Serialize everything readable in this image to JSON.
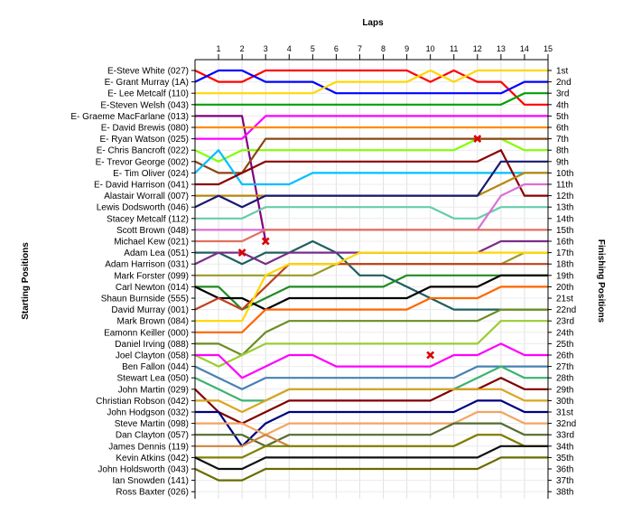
{
  "chart_data": {
    "type": "line",
    "title": "",
    "xlabel": "Laps",
    "ylabel_left": "Starting Positions",
    "ylabel_right": "Finishing Positions",
    "x_ticks": [
      "1",
      "2",
      "3",
      "4",
      "5",
      "6",
      "7",
      "8",
      "9",
      "10",
      "11",
      "12",
      "13",
      "14",
      "15"
    ],
    "starting_labels": [
      "E-Steve White (027)",
      "E- Grant Murray (1A)",
      "E- Lee Metcalf (110)",
      "E-Steven Welsh (043)",
      "E- Graeme MacFarlane (013)",
      "E- David Brewis (080)",
      "E- Ryan Watson (025)",
      "E- Chris Bancroft (022)",
      "E- Trevor George (002)",
      "E- Tim Oliver (024)",
      "E- David Harrison (041)",
      "Alastair Worrall (007)",
      "Lewis Dodsworth (046)",
      "Stacey Metcalf (112)",
      "Scott Brown (048)",
      "Michael Kew (021)",
      "Adam Lea (051)",
      "Adam Harrison (031)",
      "Mark Forster (099)",
      "Carl Newton (014)",
      "Shaun Burnside (555)",
      "David Murray (001)",
      "Mark Brown (084)",
      "Eamonn Keiller (000)",
      "Daniel Irving (088)",
      "Joel Clayton (058)",
      "Ben Fallon (044)",
      "Stewart Lea (050)",
      "John Martin (029)",
      "Christian Robson (042)",
      "John Hodgson (032)",
      "Steve Martin (098)",
      "Dan Clayton (057)",
      "James Dennis (119)",
      "Kevin Atkins (042)",
      "John Holdsworth (043)",
      "Ian Snowden (141)",
      "Ross Baxter (026)"
    ],
    "finishing_labels": [
      "1st",
      "2nd",
      "3rd",
      "4th",
      "5th",
      "6th",
      "7th",
      "8th",
      "9th",
      "10th",
      "11th",
      "12th",
      "13th",
      "14th",
      "15th",
      "16th",
      "17th",
      "18th",
      "19th",
      "20th",
      "21st",
      "22nd",
      "23rd",
      "24th",
      "25th",
      "26th",
      "27th",
      "28th",
      "29th",
      "30th",
      "31st",
      "32nd",
      "33rd",
      "34th",
      "35th",
      "36th",
      "37th",
      "38th"
    ],
    "series": [
      {
        "color": "#ff0000",
        "start": 1,
        "positions": [
          2,
          2,
          1,
          1,
          1,
          1,
          1,
          1,
          1,
          2,
          1,
          2,
          2,
          4,
          4
        ]
      },
      {
        "color": "#0000ff",
        "start": 2,
        "positions": [
          1,
          1,
          2,
          2,
          2,
          3,
          3,
          3,
          3,
          3,
          3,
          3,
          3,
          2,
          2
        ]
      },
      {
        "color": "#ffd700",
        "start": 3,
        "positions": [
          3,
          3,
          3,
          3,
          3,
          2,
          2,
          2,
          2,
          1,
          2,
          1,
          1,
          1,
          1
        ]
      },
      {
        "color": "#00a000",
        "start": 4,
        "positions": [
          4,
          4,
          4,
          4,
          4,
          4,
          4,
          4,
          4,
          4,
          4,
          4,
          4,
          3,
          3
        ]
      },
      {
        "color": "#800080",
        "start": 5,
        "positions": [
          5,
          5,
          16,
          null,
          null,
          null,
          null,
          null,
          null,
          null,
          null,
          null,
          null,
          null,
          null
        ],
        "retired_at": 3
      },
      {
        "color": "#ff00ff",
        "start": 7,
        "positions": [
          7,
          7,
          5,
          5,
          5,
          5,
          5,
          5,
          5,
          5,
          5,
          5,
          5,
          5,
          5
        ]
      },
      {
        "color": "#ff8c00",
        "start": 6,
        "positions": [
          6,
          6,
          6,
          6,
          6,
          6,
          6,
          6,
          6,
          6,
          6,
          6,
          6,
          6,
          6
        ]
      },
      {
        "color": "#80ff00",
        "start": 8,
        "positions": [
          9,
          8,
          8,
          8,
          8,
          8,
          8,
          8,
          8,
          8,
          8,
          7,
          7,
          8,
          8
        ]
      },
      {
        "color": "#8b4513",
        "start": 9,
        "positions": [
          10,
          10,
          7,
          7,
          7,
          7,
          7,
          7,
          7,
          7,
          7,
          7,
          7,
          7,
          7
        ]
      },
      {
        "color": "#00bfff",
        "start": 10,
        "positions": [
          8,
          11,
          11,
          11,
          10,
          10,
          10,
          10,
          10,
          10,
          10,
          10,
          10,
          10,
          10
        ]
      },
      {
        "color": "#8b0000",
        "start": 11,
        "positions": [
          11,
          10,
          9,
          9,
          9,
          9,
          9,
          9,
          9,
          9,
          9,
          9,
          8,
          12,
          12
        ]
      },
      {
        "color": "#b8860b",
        "start": 12,
        "positions": [
          12,
          12,
          12,
          12,
          12,
          12,
          12,
          12,
          12,
          12,
          12,
          12,
          11,
          10,
          10
        ]
      },
      {
        "color": "#191970",
        "start": 13,
        "positions": [
          12,
          13,
          12,
          12,
          12,
          12,
          12,
          12,
          12,
          12,
          12,
          12,
          9,
          9,
          9
        ]
      },
      {
        "color": "#66cdaa",
        "start": 14,
        "positions": [
          14,
          14,
          13,
          13,
          13,
          13,
          13,
          13,
          13,
          13,
          14,
          14,
          13,
          13,
          13
        ]
      },
      {
        "color": "#da70d6",
        "start": 15,
        "positions": [
          15,
          15,
          15,
          15,
          15,
          15,
          15,
          15,
          15,
          15,
          15,
          15,
          12,
          11,
          11
        ]
      },
      {
        "color": "#e07060",
        "start": 16,
        "positions": [
          16,
          16,
          15,
          15,
          15,
          15,
          15,
          15,
          15,
          15,
          15,
          15,
          15,
          15,
          15
        ]
      },
      {
        "color": "#1f5f5f",
        "start": 17,
        "positions": [
          17,
          18,
          17,
          17,
          16,
          17,
          19,
          19,
          20,
          21,
          22,
          22,
          22,
          22,
          22
        ]
      },
      {
        "color": "#7b2d8b",
        "start": 18,
        "positions": [
          17,
          17,
          18,
          17,
          17,
          17,
          17,
          17,
          17,
          17,
          17,
          17,
          16,
          16,
          16
        ]
      },
      {
        "color": "#9a9a2a",
        "start": 19,
        "positions": [
          19,
          19,
          19,
          19,
          19,
          18,
          18,
          18,
          18,
          18,
          18,
          18,
          18,
          17,
          17
        ]
      },
      {
        "color": "#228b22",
        "start": 20,
        "positions": [
          20,
          22,
          21,
          20,
          20,
          20,
          20,
          20,
          19,
          19,
          19,
          19,
          19,
          19,
          19
        ]
      },
      {
        "color": "#000000",
        "start": 20,
        "positions": [
          21,
          21,
          22,
          21,
          21,
          21,
          21,
          21,
          21,
          20,
          20,
          20,
          19,
          19,
          19
        ]
      },
      {
        "color": "#c04020",
        "start": 22,
        "positions": [
          21,
          22,
          20,
          18,
          18,
          18,
          18,
          18,
          18,
          18,
          18,
          18,
          18,
          18,
          18
        ]
      },
      {
        "color": "#ffd700",
        "start": 23,
        "positions": [
          23,
          23,
          19,
          18,
          18,
          18,
          17,
          17,
          17,
          17,
          17,
          17,
          17,
          17,
          17
        ]
      },
      {
        "color": "#ff6600",
        "start": 24,
        "positions": [
          24,
          24,
          22,
          22,
          22,
          22,
          22,
          22,
          22,
          21,
          21,
          21,
          20,
          20,
          20
        ]
      },
      {
        "color": "#6b8e23",
        "start": 25,
        "positions": [
          25,
          26,
          24,
          23,
          23,
          23,
          23,
          23,
          23,
          23,
          23,
          23,
          22,
          22,
          22
        ]
      },
      {
        "color": "#9acd32",
        "start": 26,
        "positions": [
          27,
          26,
          25,
          25,
          25,
          25,
          25,
          25,
          25,
          25,
          25,
          25,
          23,
          23,
          23
        ]
      },
      {
        "color": "#ff00ff",
        "start": 26,
        "positions": [
          26,
          28,
          27,
          26,
          26,
          27,
          27,
          27,
          27,
          27,
          26,
          26,
          25,
          26,
          26
        ]
      },
      {
        "color": "#4682b4",
        "start": 27,
        "positions": [
          28,
          29,
          28,
          28,
          28,
          28,
          28,
          28,
          28,
          28,
          28,
          27,
          27,
          27,
          27
        ]
      },
      {
        "color": "#3cb371",
        "start": 28,
        "positions": [
          29,
          30,
          30,
          29,
          29,
          29,
          29,
          29,
          29,
          29,
          29,
          28,
          27,
          28,
          28
        ]
      },
      {
        "color": "#800000",
        "start": 29,
        "positions": [
          31,
          32,
          31,
          30,
          30,
          30,
          30,
          30,
          30,
          30,
          29,
          29,
          28,
          29,
          29
        ]
      },
      {
        "color": "#daa520",
        "start": 30,
        "positions": [
          30,
          31,
          30,
          29,
          29,
          29,
          29,
          29,
          29,
          29,
          29,
          29,
          29,
          30,
          30
        ]
      },
      {
        "color": "#000080",
        "start": 31,
        "positions": [
          31,
          34,
          32,
          31,
          31,
          31,
          31,
          31,
          31,
          31,
          31,
          30,
          30,
          31,
          31
        ]
      },
      {
        "color": "#f4a460",
        "start": 32,
        "positions": [
          32,
          32,
          33,
          32,
          32,
          32,
          32,
          32,
          32,
          32,
          32,
          31,
          31,
          32,
          32
        ]
      },
      {
        "color": "#556b2f",
        "start": 33,
        "positions": [
          33,
          33,
          34,
          33,
          33,
          33,
          33,
          33,
          33,
          33,
          32,
          32,
          32,
          33,
          33
        ]
      },
      {
        "color": "#cd853f",
        "start": 34,
        "positions": [
          34,
          34,
          33,
          34,
          34,
          34,
          34,
          34,
          34,
          34,
          34,
          33,
          33,
          34,
          34
        ]
      },
      {
        "color": "#808000",
        "start": 35,
        "positions": [
          35,
          35,
          34,
          34,
          34,
          34,
          34,
          34,
          34,
          34,
          34,
          33,
          33,
          34,
          34
        ]
      },
      {
        "color": "#111111",
        "start": 35,
        "positions": [
          36,
          36,
          35,
          35,
          35,
          35,
          35,
          35,
          35,
          35,
          35,
          35,
          34,
          34,
          34
        ]
      },
      {
        "color": "#6b6b00",
        "start": 36,
        "positions": [
          37,
          37,
          36,
          36,
          36,
          36,
          36,
          36,
          36,
          36,
          36,
          36,
          35,
          35,
          35
        ]
      }
    ],
    "crash_markers": [
      {
        "lap": 12,
        "position": 7
      },
      {
        "lap": 3,
        "position": 16
      },
      {
        "lap": 2,
        "position": 17
      },
      {
        "lap": 10,
        "position": 26
      }
    ],
    "grid": true
  }
}
